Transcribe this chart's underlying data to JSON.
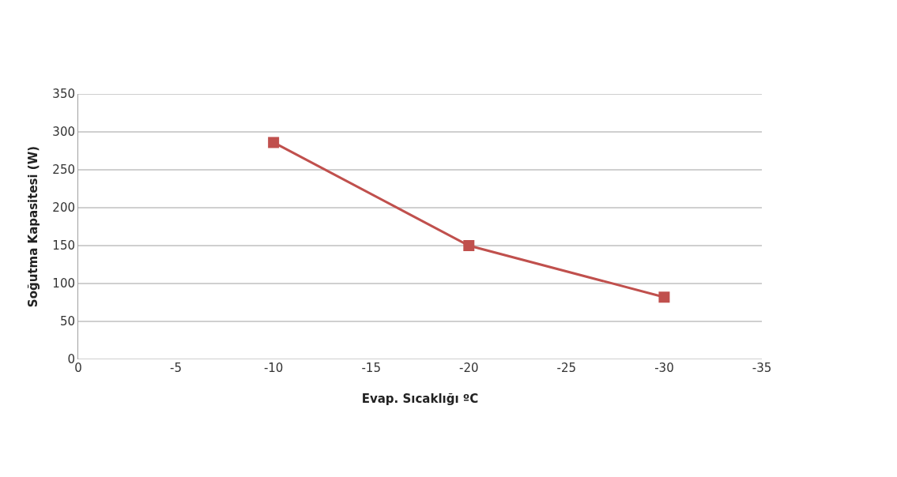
{
  "chart_data": {
    "type": "line",
    "xlabel": "Evap. Sıcaklığı ºC",
    "ylabel": "Soğutma Kapasitesi (W)",
    "x": [
      -10,
      -20,
      -30
    ],
    "series": [
      {
        "color": "#c0504d",
        "values": [
          286,
          150,
          82
        ]
      }
    ],
    "xlim": [
      0,
      -35
    ],
    "xticks": [
      0,
      -5,
      -10,
      -15,
      -20,
      -25,
      -30,
      -35
    ],
    "ylim": [
      0,
      350
    ],
    "yticks": [
      0,
      50,
      100,
      150,
      200,
      250,
      300,
      350
    ],
    "grid": "y",
    "marker": "square",
    "line_style": "solid"
  }
}
